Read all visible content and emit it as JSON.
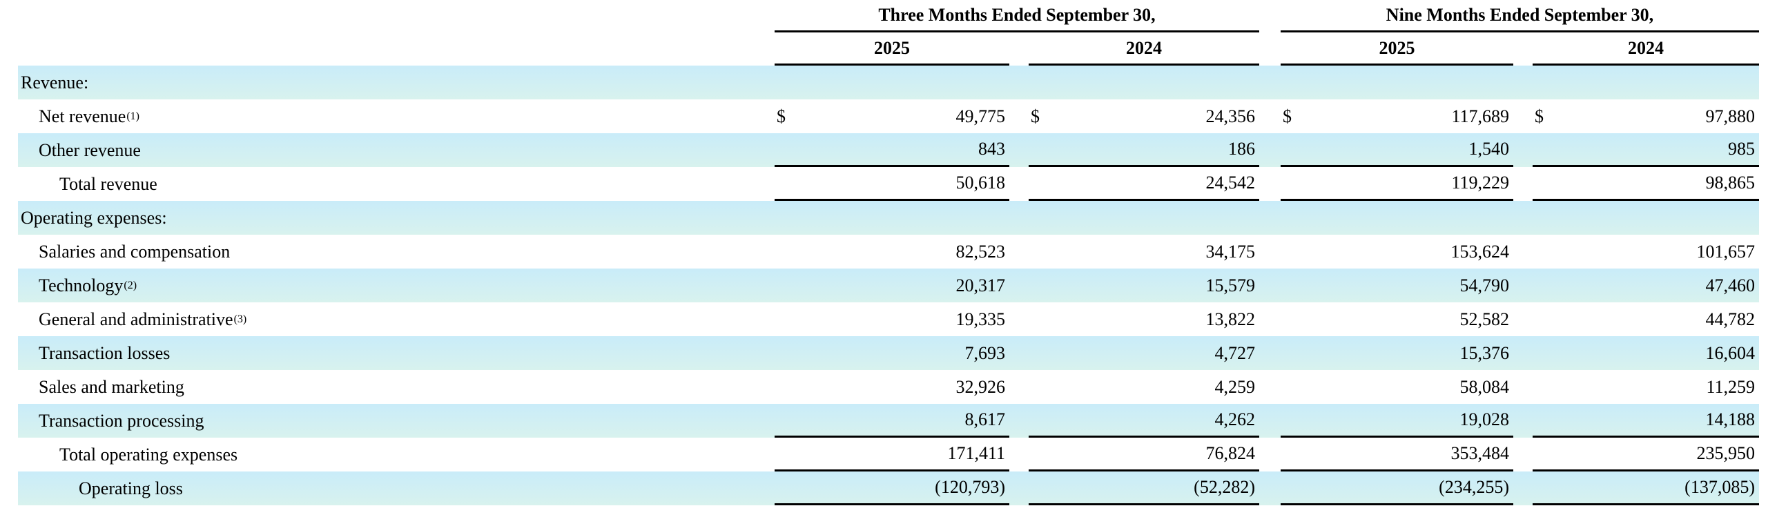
{
  "colors": {
    "row_highlight_top": "#c9ecf9",
    "row_highlight_bottom": "#d8f2ee",
    "rule": "#000000",
    "text": "#000000"
  },
  "table": {
    "period_headers": [
      "Three Months Ended September 30,",
      "Nine Months Ended September 30,"
    ],
    "year_headers": [
      "2025",
      "2024",
      "2025",
      "2024"
    ],
    "rows": [
      {
        "label": "Revenue:",
        "sup": "",
        "dollar": "",
        "indent": 0,
        "shaded": true,
        "rule": false,
        "values": [
          "",
          "",
          "",
          ""
        ]
      },
      {
        "label": "Net revenue",
        "sup": "(1)",
        "dollar": "$",
        "indent": 1,
        "shaded": false,
        "rule": false,
        "values": [
          "49,775",
          "24,356",
          "117,689",
          "97,880"
        ]
      },
      {
        "label": "Other revenue",
        "sup": "",
        "dollar": "",
        "indent": 1,
        "shaded": true,
        "rule": true,
        "values": [
          "843",
          "186",
          "1,540",
          "985"
        ]
      },
      {
        "label": "Total revenue",
        "sup": "",
        "dollar": "",
        "indent": 2,
        "shaded": false,
        "rule": true,
        "values": [
          "50,618",
          "24,542",
          "119,229",
          "98,865"
        ]
      },
      {
        "label": "Operating expenses:",
        "sup": "",
        "dollar": "",
        "indent": 0,
        "shaded": true,
        "rule": false,
        "values": [
          "",
          "",
          "",
          ""
        ]
      },
      {
        "label": "Salaries and compensation",
        "sup": "",
        "dollar": "",
        "indent": 1,
        "shaded": false,
        "rule": false,
        "values": [
          "82,523",
          "34,175",
          "153,624",
          "101,657"
        ]
      },
      {
        "label": "Technology",
        "sup": "(2)",
        "dollar": "",
        "indent": 1,
        "shaded": true,
        "rule": false,
        "values": [
          "20,317",
          "15,579",
          "54,790",
          "47,460"
        ]
      },
      {
        "label": "General and administrative",
        "sup": "(3)",
        "dollar": "",
        "indent": 1,
        "shaded": false,
        "rule": false,
        "values": [
          "19,335",
          "13,822",
          "52,582",
          "44,782"
        ]
      },
      {
        "label": "Transaction losses",
        "sup": "",
        "dollar": "",
        "indent": 1,
        "shaded": true,
        "rule": false,
        "values": [
          "7,693",
          "4,727",
          "15,376",
          "16,604"
        ]
      },
      {
        "label": "Sales and marketing",
        "sup": "",
        "dollar": "",
        "indent": 1,
        "shaded": false,
        "rule": false,
        "values": [
          "32,926",
          "4,259",
          "58,084",
          "11,259"
        ]
      },
      {
        "label": "Transaction processing",
        "sup": "",
        "dollar": "",
        "indent": 1,
        "shaded": true,
        "rule": true,
        "values": [
          "8,617",
          "4,262",
          "19,028",
          "14,188"
        ]
      },
      {
        "label": "Total operating expenses",
        "sup": "",
        "dollar": "",
        "indent": 2,
        "shaded": false,
        "rule": true,
        "values": [
          "171,411",
          "76,824",
          "353,484",
          "235,950"
        ]
      },
      {
        "label": "Operating loss",
        "sup": "",
        "dollar": "",
        "indent": 3,
        "shaded": true,
        "rule": true,
        "values": [
          "(120,793)",
          "(52,282)",
          "(234,255)",
          "(137,085)"
        ]
      }
    ]
  }
}
